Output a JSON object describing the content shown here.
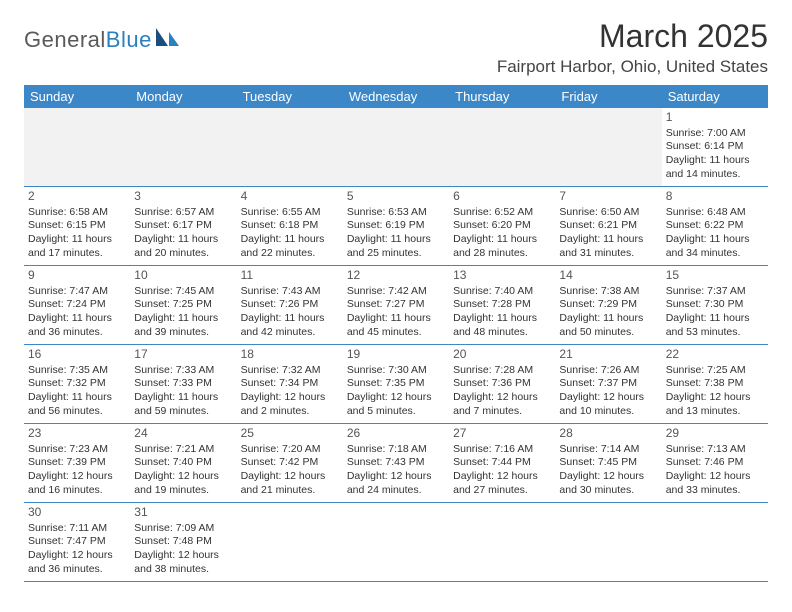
{
  "logo": {
    "word1": "General",
    "word2": "Blue"
  },
  "title": "March 2025",
  "location": "Fairport Harbor, Ohio, United States",
  "colors": {
    "header_bg": "#3b87c8",
    "header_text": "#ffffff",
    "border": "#3b87c8",
    "empty_bg": "#f2f2f2",
    "logo_gray": "#5a5a5a",
    "logo_blue": "#2a7fbf",
    "text": "#333333"
  },
  "dayNames": [
    "Sunday",
    "Monday",
    "Tuesday",
    "Wednesday",
    "Thursday",
    "Friday",
    "Saturday"
  ],
  "weeks": [
    [
      {
        "empty": true
      },
      {
        "empty": true
      },
      {
        "empty": true
      },
      {
        "empty": true
      },
      {
        "empty": true
      },
      {
        "empty": true
      },
      {
        "n": "1",
        "sunrise": "Sunrise: 7:00 AM",
        "sunset": "Sunset: 6:14 PM",
        "d1": "Daylight: 11 hours",
        "d2": "and 14 minutes."
      }
    ],
    [
      {
        "n": "2",
        "sunrise": "Sunrise: 6:58 AM",
        "sunset": "Sunset: 6:15 PM",
        "d1": "Daylight: 11 hours",
        "d2": "and 17 minutes."
      },
      {
        "n": "3",
        "sunrise": "Sunrise: 6:57 AM",
        "sunset": "Sunset: 6:17 PM",
        "d1": "Daylight: 11 hours",
        "d2": "and 20 minutes."
      },
      {
        "n": "4",
        "sunrise": "Sunrise: 6:55 AM",
        "sunset": "Sunset: 6:18 PM",
        "d1": "Daylight: 11 hours",
        "d2": "and 22 minutes."
      },
      {
        "n": "5",
        "sunrise": "Sunrise: 6:53 AM",
        "sunset": "Sunset: 6:19 PM",
        "d1": "Daylight: 11 hours",
        "d2": "and 25 minutes."
      },
      {
        "n": "6",
        "sunrise": "Sunrise: 6:52 AM",
        "sunset": "Sunset: 6:20 PM",
        "d1": "Daylight: 11 hours",
        "d2": "and 28 minutes."
      },
      {
        "n": "7",
        "sunrise": "Sunrise: 6:50 AM",
        "sunset": "Sunset: 6:21 PM",
        "d1": "Daylight: 11 hours",
        "d2": "and 31 minutes."
      },
      {
        "n": "8",
        "sunrise": "Sunrise: 6:48 AM",
        "sunset": "Sunset: 6:22 PM",
        "d1": "Daylight: 11 hours",
        "d2": "and 34 minutes."
      }
    ],
    [
      {
        "n": "9",
        "sunrise": "Sunrise: 7:47 AM",
        "sunset": "Sunset: 7:24 PM",
        "d1": "Daylight: 11 hours",
        "d2": "and 36 minutes."
      },
      {
        "n": "10",
        "sunrise": "Sunrise: 7:45 AM",
        "sunset": "Sunset: 7:25 PM",
        "d1": "Daylight: 11 hours",
        "d2": "and 39 minutes."
      },
      {
        "n": "11",
        "sunrise": "Sunrise: 7:43 AM",
        "sunset": "Sunset: 7:26 PM",
        "d1": "Daylight: 11 hours",
        "d2": "and 42 minutes."
      },
      {
        "n": "12",
        "sunrise": "Sunrise: 7:42 AM",
        "sunset": "Sunset: 7:27 PM",
        "d1": "Daylight: 11 hours",
        "d2": "and 45 minutes."
      },
      {
        "n": "13",
        "sunrise": "Sunrise: 7:40 AM",
        "sunset": "Sunset: 7:28 PM",
        "d1": "Daylight: 11 hours",
        "d2": "and 48 minutes."
      },
      {
        "n": "14",
        "sunrise": "Sunrise: 7:38 AM",
        "sunset": "Sunset: 7:29 PM",
        "d1": "Daylight: 11 hours",
        "d2": "and 50 minutes."
      },
      {
        "n": "15",
        "sunrise": "Sunrise: 7:37 AM",
        "sunset": "Sunset: 7:30 PM",
        "d1": "Daylight: 11 hours",
        "d2": "and 53 minutes."
      }
    ],
    [
      {
        "n": "16",
        "sunrise": "Sunrise: 7:35 AM",
        "sunset": "Sunset: 7:32 PM",
        "d1": "Daylight: 11 hours",
        "d2": "and 56 minutes."
      },
      {
        "n": "17",
        "sunrise": "Sunrise: 7:33 AM",
        "sunset": "Sunset: 7:33 PM",
        "d1": "Daylight: 11 hours",
        "d2": "and 59 minutes."
      },
      {
        "n": "18",
        "sunrise": "Sunrise: 7:32 AM",
        "sunset": "Sunset: 7:34 PM",
        "d1": "Daylight: 12 hours",
        "d2": "and 2 minutes."
      },
      {
        "n": "19",
        "sunrise": "Sunrise: 7:30 AM",
        "sunset": "Sunset: 7:35 PM",
        "d1": "Daylight: 12 hours",
        "d2": "and 5 minutes."
      },
      {
        "n": "20",
        "sunrise": "Sunrise: 7:28 AM",
        "sunset": "Sunset: 7:36 PM",
        "d1": "Daylight: 12 hours",
        "d2": "and 7 minutes."
      },
      {
        "n": "21",
        "sunrise": "Sunrise: 7:26 AM",
        "sunset": "Sunset: 7:37 PM",
        "d1": "Daylight: 12 hours",
        "d2": "and 10 minutes."
      },
      {
        "n": "22",
        "sunrise": "Sunrise: 7:25 AM",
        "sunset": "Sunset: 7:38 PM",
        "d1": "Daylight: 12 hours",
        "d2": "and 13 minutes."
      }
    ],
    [
      {
        "n": "23",
        "sunrise": "Sunrise: 7:23 AM",
        "sunset": "Sunset: 7:39 PM",
        "d1": "Daylight: 12 hours",
        "d2": "and 16 minutes."
      },
      {
        "n": "24",
        "sunrise": "Sunrise: 7:21 AM",
        "sunset": "Sunset: 7:40 PM",
        "d1": "Daylight: 12 hours",
        "d2": "and 19 minutes."
      },
      {
        "n": "25",
        "sunrise": "Sunrise: 7:20 AM",
        "sunset": "Sunset: 7:42 PM",
        "d1": "Daylight: 12 hours",
        "d2": "and 21 minutes."
      },
      {
        "n": "26",
        "sunrise": "Sunrise: 7:18 AM",
        "sunset": "Sunset: 7:43 PM",
        "d1": "Daylight: 12 hours",
        "d2": "and 24 minutes."
      },
      {
        "n": "27",
        "sunrise": "Sunrise: 7:16 AM",
        "sunset": "Sunset: 7:44 PM",
        "d1": "Daylight: 12 hours",
        "d2": "and 27 minutes."
      },
      {
        "n": "28",
        "sunrise": "Sunrise: 7:14 AM",
        "sunset": "Sunset: 7:45 PM",
        "d1": "Daylight: 12 hours",
        "d2": "and 30 minutes."
      },
      {
        "n": "29",
        "sunrise": "Sunrise: 7:13 AM",
        "sunset": "Sunset: 7:46 PM",
        "d1": "Daylight: 12 hours",
        "d2": "and 33 minutes."
      }
    ],
    [
      {
        "n": "30",
        "sunrise": "Sunrise: 7:11 AM",
        "sunset": "Sunset: 7:47 PM",
        "d1": "Daylight: 12 hours",
        "d2": "and 36 minutes."
      },
      {
        "n": "31",
        "sunrise": "Sunrise: 7:09 AM",
        "sunset": "Sunset: 7:48 PM",
        "d1": "Daylight: 12 hours",
        "d2": "and 38 minutes."
      },
      {
        "empty": true
      },
      {
        "empty": true
      },
      {
        "empty": true
      },
      {
        "empty": true
      },
      {
        "empty": true
      }
    ]
  ]
}
